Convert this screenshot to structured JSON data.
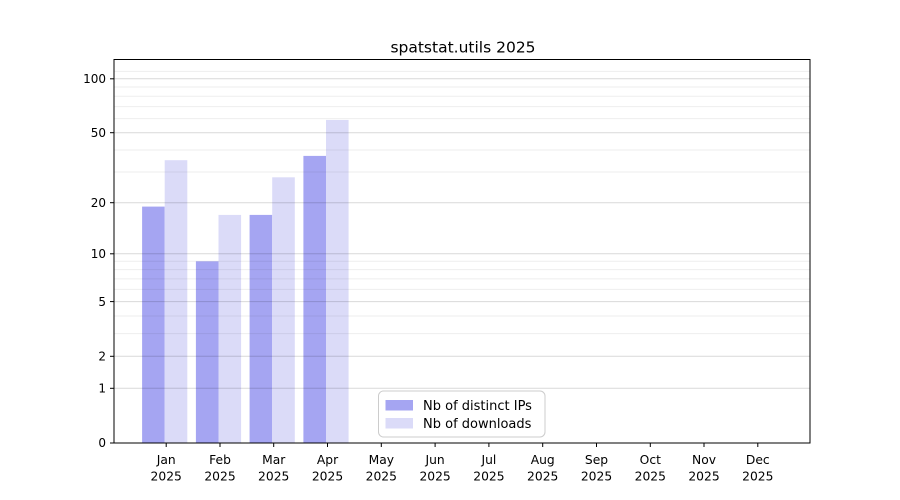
{
  "title": "spatstat.utils 2025",
  "colors": {
    "bar_distinct_ips": "#a5a5f2",
    "bar_downloads": "#dbdbf8",
    "grid_major": "rgba(0,0,0,0.15)",
    "grid_minor": "rgba(0,0,0,0.065)",
    "axis": "#000000",
    "text": "#000000",
    "legend_border": "#cccccc",
    "legend_background": "#ffffff",
    "background": "#ffffff"
  },
  "legend": {
    "entries": [
      {
        "label": "Nb of distinct IPs",
        "color": "#a5a5f2"
      },
      {
        "label": "Nb of downloads",
        "color": "#dbdbf8"
      }
    ],
    "position": "inside-bottom-center"
  },
  "chart_data": {
    "type": "bar",
    "title": "spatstat.utils 2025",
    "categories": [
      "Jan",
      "Feb",
      "Mar",
      "Apr",
      "May",
      "Jun",
      "Jul",
      "Aug",
      "Sep",
      "Oct",
      "Nov",
      "Dec"
    ],
    "year": "2025",
    "series": [
      {
        "name": "Nb of distinct IPs",
        "color": "#a5a5f2",
        "values": [
          19,
          9,
          17,
          37,
          0,
          0,
          0,
          0,
          0,
          0,
          0,
          0
        ]
      },
      {
        "name": "Nb of downloads",
        "color": "#dbdbf8",
        "values": [
          35,
          17,
          28,
          59,
          0,
          0,
          0,
          0,
          0,
          0,
          0,
          0
        ]
      }
    ],
    "xlabel": "",
    "ylabel": "",
    "y_scale": "log10(value+1)",
    "y_ticks": [
      0,
      1,
      2,
      5,
      10,
      20,
      50,
      100
    ],
    "y_minor_gridlines": [
      3,
      4,
      6,
      7,
      8,
      9,
      30,
      40,
      60,
      70,
      80,
      90,
      110
    ],
    "ylim": [
      0,
      128
    ],
    "xlim": [
      0.03,
      12.97
    ],
    "grid": true,
    "legend_position": "inside bottom-center"
  }
}
